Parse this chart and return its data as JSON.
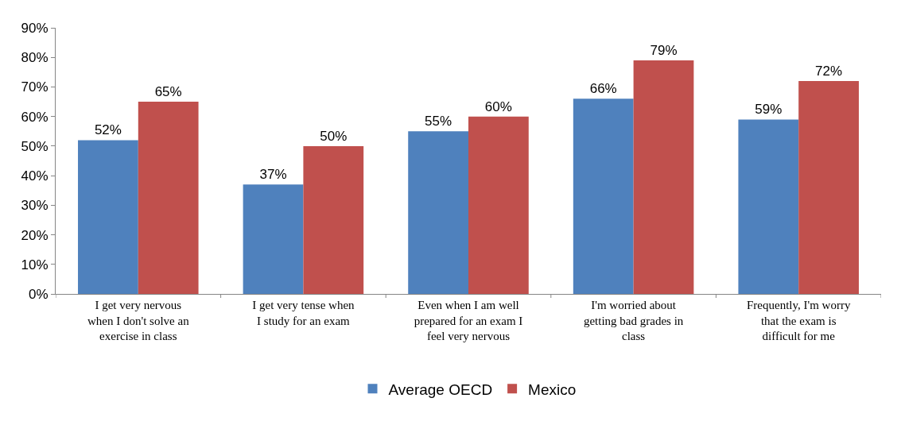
{
  "chart_data": {
    "type": "bar",
    "categories": [
      "I get very nervous when I don't solve an exercise in class",
      "I get very tense when I study for an exam",
      "Even when I am well prepared for an exam I feel very nervous",
      "I'm worried about getting bad grades in class",
      "Frequently, I'm worry that the exam is difficult for me"
    ],
    "series": [
      {
        "name": "Average OECD",
        "color": "#4f81bd",
        "values": [
          52,
          37,
          55,
          66,
          59
        ],
        "value_labels": [
          "52%",
          "37%",
          "55%",
          "66%",
          "59%"
        ]
      },
      {
        "name": "Mexico",
        "color": "#c0504d",
        "values": [
          65,
          50,
          60,
          79,
          72
        ],
        "value_labels": [
          "65%",
          "50%",
          "60%",
          "79%",
          "72%"
        ]
      }
    ],
    "ylim": [
      0,
      90
    ],
    "yticks": [
      {
        "value": 0,
        "label": "0%"
      },
      {
        "value": 10,
        "label": "10%"
      },
      {
        "value": 20,
        "label": "20%"
      },
      {
        "value": 30,
        "label": "30%"
      },
      {
        "value": 40,
        "label": "40%"
      },
      {
        "value": 50,
        "label": "50%"
      },
      {
        "value": 60,
        "label": "60%"
      },
      {
        "value": 70,
        "label": "70%"
      },
      {
        "value": 80,
        "label": "80%"
      },
      {
        "value": 90,
        "label": "90%"
      }
    ],
    "grid": false,
    "legend": "bottom"
  }
}
